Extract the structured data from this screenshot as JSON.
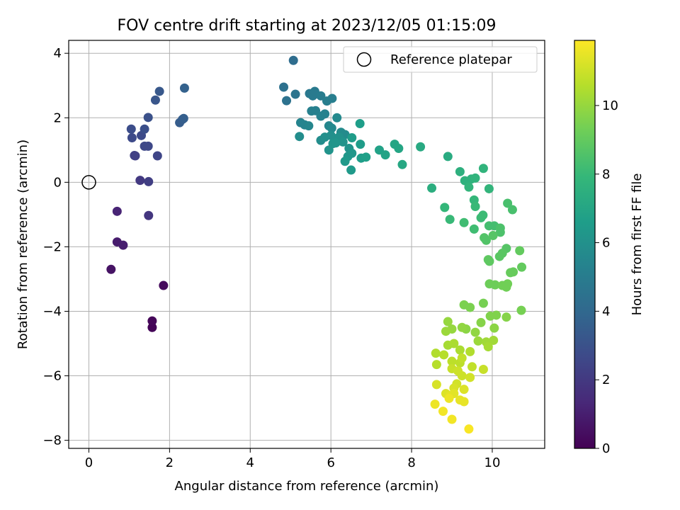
{
  "chart_data": {
    "type": "scatter",
    "title": "FOV centre drift starting at 2023/12/05 01:15:09",
    "xlabel": "Angular distance from reference (arcmin)",
    "ylabel": "Rotation from reference (arcmin)",
    "xlim": [
      -0.5,
      11.3
    ],
    "ylim": [
      -8.25,
      4.4
    ],
    "xticks": [
      0,
      2,
      4,
      6,
      8,
      10
    ],
    "yticks": [
      -8,
      -6,
      -4,
      -2,
      0,
      2,
      4
    ],
    "grid": true,
    "legend": {
      "position": "top-right",
      "entries": [
        {
          "label": "Reference platepar",
          "marker": "open-circle"
        }
      ]
    },
    "reference_point": {
      "x": 0,
      "y": 0
    },
    "colorbar": {
      "label": "Hours from first FF file",
      "range": [
        0,
        11.9
      ],
      "ticks": [
        0,
        2,
        4,
        6,
        8,
        10
      ],
      "colormap": "viridis",
      "colors": [
        "#440154",
        "#482878",
        "#3e4989",
        "#31688e",
        "#26828e",
        "#1f9e89",
        "#35b779",
        "#6ece58",
        "#b5de2b",
        "#fde725"
      ]
    },
    "series": [
      {
        "points": [
          {
            "x": 1.57,
            "y": -4.5,
            "t": 0.1
          },
          {
            "x": 1.57,
            "y": -4.3,
            "t": 0.2
          },
          {
            "x": 1.85,
            "y": -3.2,
            "t": 0.3
          },
          {
            "x": 0.55,
            "y": -2.7,
            "t": 0.6
          },
          {
            "x": 0.7,
            "y": -1.85,
            "t": 0.9
          },
          {
            "x": 0.85,
            "y": -1.95,
            "t": 1.0
          },
          {
            "x": 0.7,
            "y": -0.9,
            "t": 1.2
          },
          {
            "x": 1.48,
            "y": -1.03,
            "t": 1.9
          },
          {
            "x": 1.27,
            "y": 0.06,
            "t": 2.0
          },
          {
            "x": 1.48,
            "y": 0.02,
            "t": 2.2
          },
          {
            "x": 1.13,
            "y": 0.83,
            "t": 2.3
          },
          {
            "x": 1.15,
            "y": 0.82,
            "t": 2.3
          },
          {
            "x": 1.7,
            "y": 0.82,
            "t": 2.5
          },
          {
            "x": 1.38,
            "y": 1.12,
            "t": 2.6
          },
          {
            "x": 1.47,
            "y": 1.12,
            "t": 2.6
          },
          {
            "x": 1.07,
            "y": 1.38,
            "t": 2.7
          },
          {
            "x": 1.3,
            "y": 1.45,
            "t": 2.7
          },
          {
            "x": 1.05,
            "y": 1.65,
            "t": 2.8
          },
          {
            "x": 1.38,
            "y": 1.65,
            "t": 2.9
          },
          {
            "x": 1.47,
            "y": 2.01,
            "t": 3.0
          },
          {
            "x": 1.65,
            "y": 2.55,
            "t": 3.2
          },
          {
            "x": 1.75,
            "y": 2.82,
            "t": 3.3
          },
          {
            "x": 2.25,
            "y": 1.85,
            "t": 3.5
          },
          {
            "x": 2.32,
            "y": 1.95,
            "t": 3.5
          },
          {
            "x": 2.35,
            "y": 1.98,
            "t": 3.6
          },
          {
            "x": 2.37,
            "y": 2.92,
            "t": 3.7
          },
          {
            "x": 5.07,
            "y": 3.78,
            "t": 4.2
          },
          {
            "x": 4.83,
            "y": 2.95,
            "t": 4.4
          },
          {
            "x": 4.9,
            "y": 2.53,
            "t": 4.5
          },
          {
            "x": 5.12,
            "y": 2.73,
            "t": 4.6
          },
          {
            "x": 5.47,
            "y": 2.75,
            "t": 4.8
          },
          {
            "x": 5.55,
            "y": 2.68,
            "t": 4.9
          },
          {
            "x": 5.6,
            "y": 2.82,
            "t": 4.9
          },
          {
            "x": 5.75,
            "y": 2.68,
            "t": 5.0
          },
          {
            "x": 5.9,
            "y": 2.52,
            "t": 5.1
          },
          {
            "x": 6.03,
            "y": 2.6,
            "t": 5.1
          },
          {
            "x": 5.52,
            "y": 2.21,
            "t": 5.2
          },
          {
            "x": 5.62,
            "y": 2.22,
            "t": 5.2
          },
          {
            "x": 5.75,
            "y": 2.05,
            "t": 5.3
          },
          {
            "x": 5.85,
            "y": 2.12,
            "t": 5.3
          },
          {
            "x": 5.25,
            "y": 1.85,
            "t": 5.4
          },
          {
            "x": 5.35,
            "y": 1.78,
            "t": 5.4
          },
          {
            "x": 5.45,
            "y": 1.75,
            "t": 5.5
          },
          {
            "x": 5.95,
            "y": 1.75,
            "t": 5.5
          },
          {
            "x": 6.02,
            "y": 1.68,
            "t": 5.6
          },
          {
            "x": 6.15,
            "y": 2.0,
            "t": 5.6
          },
          {
            "x": 6.25,
            "y": 1.55,
            "t": 5.7
          },
          {
            "x": 6.35,
            "y": 1.48,
            "t": 5.7
          },
          {
            "x": 5.22,
            "y": 1.42,
            "t": 5.8
          },
          {
            "x": 5.75,
            "y": 1.3,
            "t": 5.8
          },
          {
            "x": 5.85,
            "y": 1.4,
            "t": 5.9
          },
          {
            "x": 6.0,
            "y": 1.45,
            "t": 5.9
          },
          {
            "x": 6.1,
            "y": 1.35,
            "t": 6.0
          },
          {
            "x": 6.2,
            "y": 1.4,
            "t": 6.0
          },
          {
            "x": 6.3,
            "y": 1.25,
            "t": 6.1
          },
          {
            "x": 6.45,
            "y": 1.05,
            "t": 6.1
          },
          {
            "x": 5.95,
            "y": 1.0,
            "t": 6.1
          },
          {
            "x": 6.05,
            "y": 1.2,
            "t": 6.2
          },
          {
            "x": 6.12,
            "y": 1.22,
            "t": 6.2
          },
          {
            "x": 6.42,
            "y": 0.8,
            "t": 6.3
          },
          {
            "x": 6.52,
            "y": 0.9,
            "t": 6.3
          },
          {
            "x": 6.35,
            "y": 0.65,
            "t": 6.4
          },
          {
            "x": 6.5,
            "y": 0.38,
            "t": 6.4
          },
          {
            "x": 6.52,
            "y": 1.38,
            "t": 6.5
          },
          {
            "x": 6.73,
            "y": 1.18,
            "t": 6.5
          },
          {
            "x": 6.72,
            "y": 1.82,
            "t": 6.6
          },
          {
            "x": 6.75,
            "y": 0.75,
            "t": 6.6
          },
          {
            "x": 6.87,
            "y": 0.78,
            "t": 6.7
          },
          {
            "x": 7.2,
            "y": 1.0,
            "t": 6.8
          },
          {
            "x": 7.35,
            "y": 0.85,
            "t": 6.9
          },
          {
            "x": 7.58,
            "y": 1.18,
            "t": 7.0
          },
          {
            "x": 7.68,
            "y": 1.05,
            "t": 7.0
          },
          {
            "x": 7.77,
            "y": 0.55,
            "t": 7.1
          },
          {
            "x": 8.22,
            "y": 1.1,
            "t": 7.2
          },
          {
            "x": 8.9,
            "y": 0.8,
            "t": 7.3
          },
          {
            "x": 8.5,
            "y": -0.18,
            "t": 7.4
          },
          {
            "x": 9.2,
            "y": 0.33,
            "t": 7.5
          },
          {
            "x": 9.32,
            "y": 0.05,
            "t": 7.6
          },
          {
            "x": 9.48,
            "y": 0.1,
            "t": 7.6
          },
          {
            "x": 9.58,
            "y": 0.13,
            "t": 7.7
          },
          {
            "x": 9.78,
            "y": 0.43,
            "t": 7.7
          },
          {
            "x": 9.42,
            "y": -0.15,
            "t": 7.8
          },
          {
            "x": 9.92,
            "y": -0.2,
            "t": 7.8
          },
          {
            "x": 9.55,
            "y": -0.55,
            "t": 7.9
          },
          {
            "x": 8.82,
            "y": -0.78,
            "t": 7.9
          },
          {
            "x": 9.58,
            "y": -0.75,
            "t": 8.0
          },
          {
            "x": 8.95,
            "y": -1.15,
            "t": 8.0
          },
          {
            "x": 9.77,
            "y": -1.02,
            "t": 8.1
          },
          {
            "x": 9.72,
            "y": -1.1,
            "t": 8.1
          },
          {
            "x": 9.3,
            "y": -1.25,
            "t": 8.2
          },
          {
            "x": 9.55,
            "y": -1.45,
            "t": 8.2
          },
          {
            "x": 9.92,
            "y": -1.35,
            "t": 8.3
          },
          {
            "x": 10.05,
            "y": -1.35,
            "t": 8.3
          },
          {
            "x": 10.38,
            "y": -0.65,
            "t": 8.4
          },
          {
            "x": 10.5,
            "y": -0.85,
            "t": 8.4
          },
          {
            "x": 10.2,
            "y": -1.42,
            "t": 8.5
          },
          {
            "x": 10.2,
            "y": -1.55,
            "t": 8.5
          },
          {
            "x": 9.8,
            "y": -1.72,
            "t": 8.6
          },
          {
            "x": 9.85,
            "y": -1.8,
            "t": 8.6
          },
          {
            "x": 10.02,
            "y": -1.65,
            "t": 8.7
          },
          {
            "x": 10.35,
            "y": -2.05,
            "t": 8.7
          },
          {
            "x": 10.25,
            "y": -2.2,
            "t": 8.8
          },
          {
            "x": 10.18,
            "y": -2.3,
            "t": 8.8
          },
          {
            "x": 9.9,
            "y": -2.4,
            "t": 8.9
          },
          {
            "x": 9.93,
            "y": -2.45,
            "t": 8.9
          },
          {
            "x": 10.68,
            "y": -2.12,
            "t": 9.0
          },
          {
            "x": 10.73,
            "y": -2.63,
            "t": 9.0
          },
          {
            "x": 10.52,
            "y": -2.78,
            "t": 9.1
          },
          {
            "x": 10.45,
            "y": -2.8,
            "t": 9.1
          },
          {
            "x": 9.93,
            "y": -3.15,
            "t": 9.2
          },
          {
            "x": 10.07,
            "y": -3.18,
            "t": 9.2
          },
          {
            "x": 10.25,
            "y": -3.2,
            "t": 9.3
          },
          {
            "x": 10.35,
            "y": -3.25,
            "t": 9.3
          },
          {
            "x": 10.38,
            "y": -3.15,
            "t": 9.3
          },
          {
            "x": 10.72,
            "y": -3.97,
            "t": 9.4
          },
          {
            "x": 9.78,
            "y": -3.75,
            "t": 9.4
          },
          {
            "x": 9.3,
            "y": -3.8,
            "t": 9.5
          },
          {
            "x": 9.45,
            "y": -3.88,
            "t": 9.5
          },
          {
            "x": 9.95,
            "y": -4.15,
            "t": 9.6
          },
          {
            "x": 10.1,
            "y": -4.12,
            "t": 9.6
          },
          {
            "x": 10.35,
            "y": -4.18,
            "t": 9.7
          },
          {
            "x": 9.72,
            "y": -4.35,
            "t": 9.7
          },
          {
            "x": 10.05,
            "y": -4.52,
            "t": 9.8
          },
          {
            "x": 9.35,
            "y": -4.55,
            "t": 9.8
          },
          {
            "x": 9.58,
            "y": -4.65,
            "t": 9.9
          },
          {
            "x": 9.25,
            "y": -4.5,
            "t": 9.9
          },
          {
            "x": 8.9,
            "y": -4.32,
            "t": 10.0
          },
          {
            "x": 9.0,
            "y": -4.55,
            "t": 10.0
          },
          {
            "x": 8.85,
            "y": -4.62,
            "t": 10.1
          },
          {
            "x": 9.65,
            "y": -4.92,
            "t": 10.1
          },
          {
            "x": 9.85,
            "y": -4.95,
            "t": 10.2
          },
          {
            "x": 10.03,
            "y": -4.9,
            "t": 10.2
          },
          {
            "x": 9.9,
            "y": -5.1,
            "t": 10.3
          },
          {
            "x": 8.9,
            "y": -5.05,
            "t": 10.3
          },
          {
            "x": 9.05,
            "y": -5.0,
            "t": 10.4
          },
          {
            "x": 9.2,
            "y": -5.2,
            "t": 10.4
          },
          {
            "x": 9.45,
            "y": -5.25,
            "t": 10.5
          },
          {
            "x": 8.6,
            "y": -5.3,
            "t": 10.5
          },
          {
            "x": 8.8,
            "y": -5.35,
            "t": 10.6
          },
          {
            "x": 8.62,
            "y": -5.65,
            "t": 10.6
          },
          {
            "x": 9.0,
            "y": -5.55,
            "t": 10.7
          },
          {
            "x": 9.2,
            "y": -5.6,
            "t": 10.7
          },
          {
            "x": 9.25,
            "y": -5.45,
            "t": 10.8
          },
          {
            "x": 9.5,
            "y": -5.72,
            "t": 10.8
          },
          {
            "x": 9.78,
            "y": -5.8,
            "t": 10.9
          },
          {
            "x": 9.0,
            "y": -5.78,
            "t": 10.9
          },
          {
            "x": 9.15,
            "y": -5.85,
            "t": 11.0
          },
          {
            "x": 9.25,
            "y": -6.0,
            "t": 11.0
          },
          {
            "x": 9.45,
            "y": -6.05,
            "t": 11.1
          },
          {
            "x": 9.12,
            "y": -6.25,
            "t": 11.1
          },
          {
            "x": 8.62,
            "y": -6.27,
            "t": 11.2
          },
          {
            "x": 9.05,
            "y": -6.38,
            "t": 11.2
          },
          {
            "x": 9.3,
            "y": -6.42,
            "t": 11.3
          },
          {
            "x": 8.85,
            "y": -6.55,
            "t": 11.3
          },
          {
            "x": 8.95,
            "y": -6.62,
            "t": 11.4
          },
          {
            "x": 9.05,
            "y": -6.55,
            "t": 11.4
          },
          {
            "x": 9.2,
            "y": -6.75,
            "t": 11.5
          },
          {
            "x": 9.3,
            "y": -6.8,
            "t": 11.5
          },
          {
            "x": 8.93,
            "y": -6.7,
            "t": 11.6
          },
          {
            "x": 8.58,
            "y": -6.88,
            "t": 11.6
          },
          {
            "x": 8.78,
            "y": -7.1,
            "t": 11.7
          },
          {
            "x": 9.0,
            "y": -7.35,
            "t": 11.7
          },
          {
            "x": 9.42,
            "y": -7.65,
            "t": 11.8
          }
        ]
      }
    ]
  }
}
